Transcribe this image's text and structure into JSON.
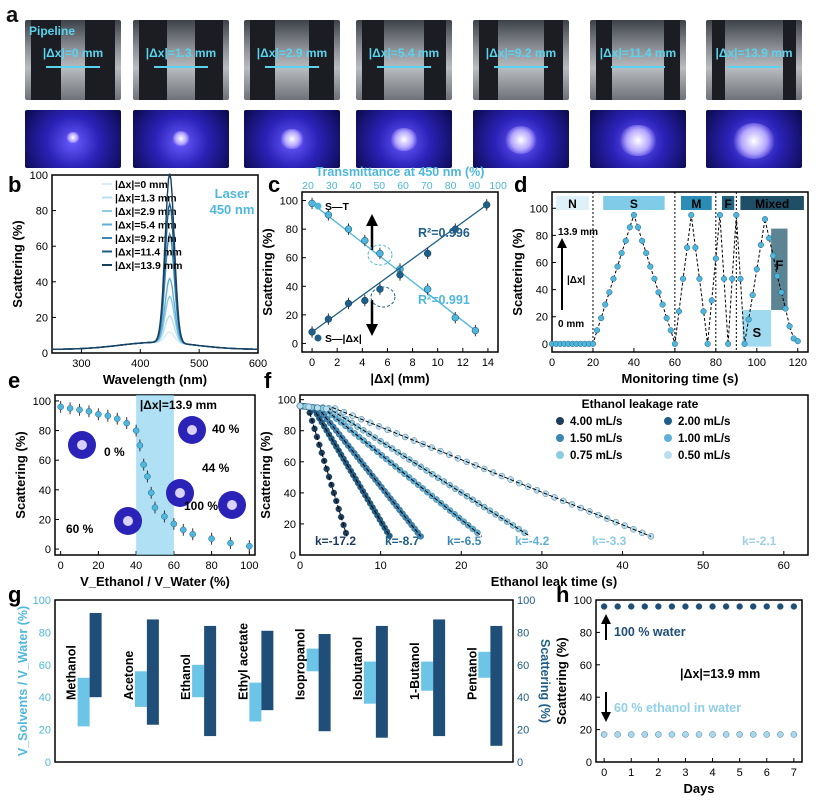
{
  "photos": {
    "pipeline_label": "Pipeline",
    "gaps": [
      "|Δx|=0 mm",
      "|Δx|=1.3 mm",
      "|Δx|=2.9 mm",
      "|Δx|=5.4 mm",
      "|Δx|=9.2 mm",
      "|Δx|=11.4 mm",
      "|Δx|=13.9 mm"
    ]
  },
  "chart_data": [
    {
      "panel": "b",
      "type": "line",
      "xlabel": "Wavelength (nm)",
      "ylabel": "Scattering (%)",
      "xlim": [
        250,
        600
      ],
      "ylim": [
        0,
        100
      ],
      "xticks": [
        300,
        400,
        500,
        600
      ],
      "yticks": [
        0,
        20,
        40,
        60,
        80,
        100
      ],
      "annotation": "Laser\n450 nm",
      "peak_x": 450,
      "series": [
        {
          "name": "|Δx|=0 mm",
          "peak": 8
        },
        {
          "name": "|Δx|=1.3 mm",
          "peak": 17
        },
        {
          "name": "|Δx|=2.9 mm",
          "peak": 28
        },
        {
          "name": "|Δx|=5.4 mm",
          "peak": 38
        },
        {
          "name": "|Δx|=9.2 mm",
          "peak": 63
        },
        {
          "name": "|Δx|=11.4 mm",
          "peak": 80
        },
        {
          "name": "|Δx|=13.9 mm",
          "peak": 97
        }
      ]
    },
    {
      "panel": "c",
      "type": "scatter",
      "xlabel": "|Δx| (mm)",
      "ylabel": "Scattering (%)",
      "top_xlabel": "Transmittance at 450 nm (%)",
      "xlim": [
        -0.8,
        14.8
      ],
      "ylim": [
        -6,
        106
      ],
      "xticks": [
        0,
        2,
        4,
        6,
        8,
        10,
        12,
        14
      ],
      "yticks": [
        0,
        20,
        40,
        60,
        80,
        100
      ],
      "top_xticks": [
        20,
        30,
        40,
        50,
        60,
        70,
        80,
        90,
        100
      ],
      "series": [
        {
          "name": "S—T",
          "r2": "R²=0.991",
          "x": [
            0,
            1.3,
            2.9,
            4.2,
            5.4,
            7.0,
            9.2,
            11.4,
            13.0
          ],
          "y": [
            98,
            90,
            80,
            72,
            63,
            52,
            38,
            18,
            9
          ]
        },
        {
          "name": "S—|Δx|",
          "r2": "R²=0.996",
          "x": [
            0,
            1.3,
            2.9,
            4.2,
            5.4,
            7.0,
            9.2,
            11.4,
            13.9
          ],
          "y": [
            8,
            17,
            28,
            30,
            38,
            48,
            63,
            80,
            97
          ]
        }
      ]
    },
    {
      "panel": "d",
      "type": "line",
      "xlabel": "Monitoring time (s)",
      "ylabel": "Scattering (%)",
      "xlim": [
        0,
        125
      ],
      "ylim": [
        -6,
        112
      ],
      "xticks": [
        0,
        20,
        40,
        60,
        80,
        100,
        120
      ],
      "yticks": [
        0,
        20,
        40,
        60,
        80,
        100
      ],
      "segments": [
        "N",
        "S",
        "M",
        "F",
        "Mixed"
      ],
      "region_labels": [
        "F",
        "S"
      ],
      "axis_labels": [
        "13.9 mm",
        "|Δx|",
        "0 mm"
      ],
      "x": [
        0,
        2,
        4,
        6,
        8,
        10,
        12,
        14,
        16,
        18,
        20,
        22,
        24,
        26,
        28,
        30,
        32,
        34,
        36,
        38,
        40,
        42,
        44,
        46,
        48,
        50,
        52,
        54,
        56,
        58,
        60,
        62,
        64,
        66,
        68,
        70,
        72,
        74,
        76,
        78,
        80,
        82,
        84,
        86,
        88,
        90,
        92,
        94,
        96,
        98,
        100,
        102,
        104,
        106,
        108,
        110,
        112,
        114,
        116,
        118,
        120
      ],
      "y": [
        0,
        0,
        0,
        0,
        0,
        0,
        0,
        0,
        0,
        0,
        0,
        10,
        19,
        29,
        38,
        48,
        57,
        67,
        76,
        86,
        95,
        86,
        76,
        67,
        57,
        48,
        38,
        29,
        19,
        10,
        0,
        24,
        48,
        71,
        95,
        71,
        48,
        24,
        0,
        32,
        63,
        95,
        48,
        0,
        48,
        95,
        48,
        0,
        18,
        36,
        55,
        73,
        92,
        78,
        65,
        50,
        38,
        26,
        13,
        4,
        2
      ]
    },
    {
      "panel": "e",
      "type": "scatter",
      "xlabel": "V_Ethanol / V_Water (%)",
      "ylabel": "Scattering (%)",
      "xlim": [
        -3,
        103
      ],
      "ylim": [
        -4,
        104
      ],
      "xticks": [
        0,
        20,
        40,
        60,
        80,
        100
      ],
      "yticks": [
        0,
        20,
        40,
        60,
        80,
        100
      ],
      "annotation": "|Δx|=13.9 mm",
      "insets": [
        "0 %",
        "40 %",
        "44 %",
        "100 %",
        "60 %"
      ],
      "x": [
        0,
        5,
        10,
        15,
        20,
        25,
        30,
        35,
        40,
        42,
        44,
        46,
        48,
        50,
        55,
        60,
        65,
        70,
        80,
        90,
        100
      ],
      "y": [
        96,
        95,
        94,
        93,
        91,
        90,
        88,
        85,
        80,
        70,
        57,
        49,
        38,
        28,
        22,
        17,
        13,
        10,
        7,
        4,
        2
      ]
    },
    {
      "panel": "f",
      "type": "scatter",
      "xlabel": "Ethanol leak time (s)",
      "ylabel": "Scattering (%)",
      "xlim": [
        0,
        63
      ],
      "ylim": [
        0,
        103
      ],
      "xticks": [
        0,
        10,
        20,
        30,
        40,
        50,
        60
      ],
      "yticks": [
        0,
        20,
        40,
        60,
        80,
        100
      ],
      "legend_title": "Ethanol leakage rate",
      "series": [
        {
          "name": "4.00 mL/s",
          "k": "k=-17.2",
          "slope": 17.2,
          "color": "#1e3d5c"
        },
        {
          "name": "2.00 mL/s",
          "k": "k=-8.7",
          "slope": 8.7,
          "color": "#1f5e86"
        },
        {
          "name": "1.50 mL/s",
          "k": "k=-6.5",
          "slope": 6.5,
          "color": "#3c86b4"
        },
        {
          "name": "1.00 mL/s",
          "k": "k=-4.2",
          "slope": 4.2,
          "color": "#5fb0d6"
        },
        {
          "name": "0.75 mL/s",
          "k": "k=-3.3",
          "slope": 3.3,
          "color": "#8ccbe4"
        },
        {
          "name": "0.50 mL/s",
          "k": "k=-2.1",
          "slope": 2.1,
          "color": "#b9def0"
        }
      ]
    },
    {
      "panel": "g",
      "type": "bar",
      "ylabel_left": "V_Solvents / V_Water (%)",
      "ylabel_right": "Scattering (%)",
      "ylim": [
        0,
        100
      ],
      "yticks": [
        0,
        20,
        40,
        60,
        80,
        100
      ],
      "categories": [
        "Methanol",
        "Acetone",
        "Ethanol",
        "Ethyl acetate",
        "Isopropanol",
        "Isobutanol",
        "1-Butanol",
        "Pentanol"
      ],
      "ratio_ranges": [
        [
          22,
          52
        ],
        [
          34,
          56
        ],
        [
          40,
          60
        ],
        [
          25,
          49
        ],
        [
          56,
          70
        ],
        [
          36,
          62
        ],
        [
          44,
          62
        ],
        [
          52,
          68
        ]
      ],
      "scattering_ranges": [
        [
          40,
          92
        ],
        [
          23,
          88
        ],
        [
          16,
          84
        ],
        [
          32,
          81
        ],
        [
          19,
          79
        ],
        [
          15,
          84
        ],
        [
          16,
          88
        ],
        [
          10,
          84
        ]
      ]
    },
    {
      "panel": "h",
      "type": "scatter",
      "xlabel": "Days",
      "ylabel": "Scattering (%)",
      "xlim": [
        -0.3,
        7.3
      ],
      "ylim": [
        0,
        100
      ],
      "xticks": [
        0,
        1,
        2,
        3,
        4,
        5,
        6,
        7
      ],
      "yticks": [
        0,
        20,
        40,
        60,
        80,
        100
      ],
      "annotation": "|Δx|=13.9 mm",
      "series": [
        {
          "name": "100 % water",
          "value": 96
        },
        {
          "name": "60 % ethanol in water",
          "value": 17
        }
      ]
    }
  ]
}
